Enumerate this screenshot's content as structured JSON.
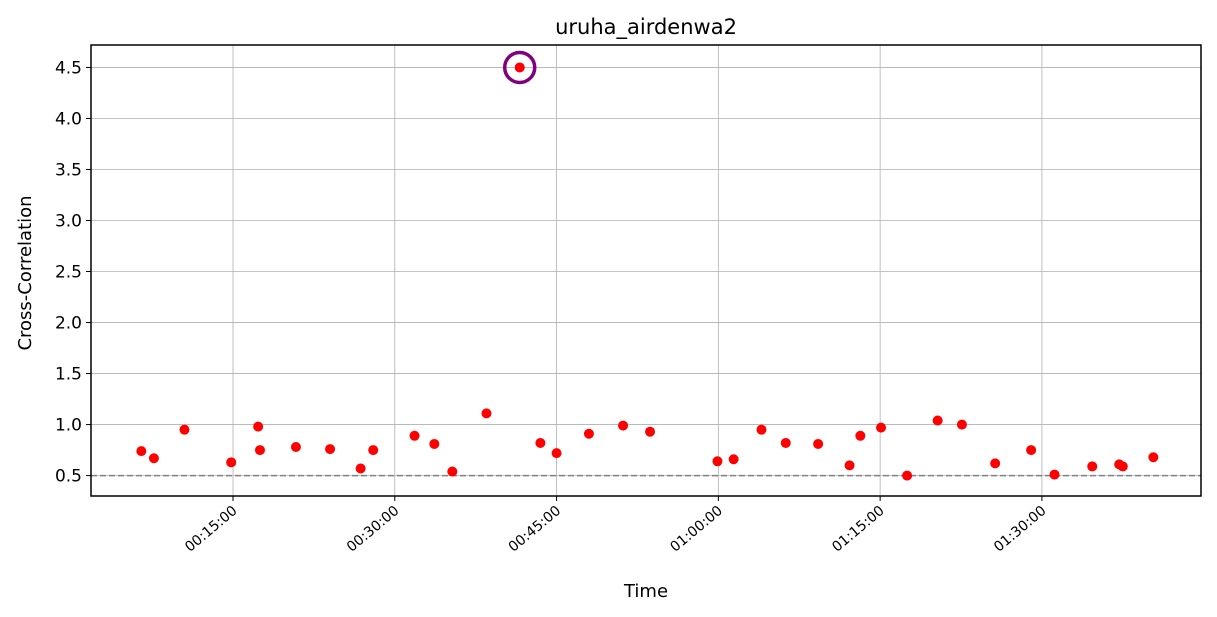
{
  "chart_data": {
    "type": "scatter",
    "title": "uruha_airdenwa2",
    "xlabel": "Time",
    "ylabel": "Cross-Correlation",
    "x_unit": "time (HH:MM:SS)",
    "xlim": [
      "00:01:50",
      "01:44:45"
    ],
    "ylim": [
      0.3,
      4.72
    ],
    "x_ticks": [
      "00:15:00",
      "00:30:00",
      "00:45:00",
      "01:00:00",
      "01:15:00",
      "01:30:00"
    ],
    "y_ticks": [
      "0.5",
      "1.0",
      "1.5",
      "2.0",
      "2.5",
      "3.0",
      "3.5",
      "4.0",
      "4.5"
    ],
    "grid": true,
    "threshold": 0.5,
    "point_color": "#ff0000",
    "highlight_color": "#800080",
    "threshold_color": "#808080",
    "highlight": {
      "x": "00:41:35",
      "y": 4.5
    },
    "points": [
      {
        "x": "00:06:30",
        "y": 0.74
      },
      {
        "x": "00:07:40",
        "y": 0.67
      },
      {
        "x": "00:10:30",
        "y": 0.95
      },
      {
        "x": "00:14:50",
        "y": 0.63
      },
      {
        "x": "00:17:20",
        "y": 0.98
      },
      {
        "x": "00:17:30",
        "y": 0.75
      },
      {
        "x": "00:20:50",
        "y": 0.78
      },
      {
        "x": "00:24:00",
        "y": 0.76
      },
      {
        "x": "00:26:50",
        "y": 0.57
      },
      {
        "x": "00:28:00",
        "y": 0.75
      },
      {
        "x": "00:31:50",
        "y": 0.89
      },
      {
        "x": "00:33:40",
        "y": 0.81
      },
      {
        "x": "00:35:20",
        "y": 0.54
      },
      {
        "x": "00:38:30",
        "y": 1.11
      },
      {
        "x": "00:41:35",
        "y": 4.5
      },
      {
        "x": "00:43:30",
        "y": 0.82
      },
      {
        "x": "00:45:00",
        "y": 0.72
      },
      {
        "x": "00:48:00",
        "y": 0.91
      },
      {
        "x": "00:51:10",
        "y": 0.99
      },
      {
        "x": "00:53:40",
        "y": 0.93
      },
      {
        "x": "00:59:55",
        "y": 0.64
      },
      {
        "x": "01:01:25",
        "y": 0.66
      },
      {
        "x": "01:04:00",
        "y": 0.95
      },
      {
        "x": "01:06:15",
        "y": 0.82
      },
      {
        "x": "01:09:15",
        "y": 0.81
      },
      {
        "x": "01:12:10",
        "y": 0.6
      },
      {
        "x": "01:13:10",
        "y": 0.89
      },
      {
        "x": "01:15:05",
        "y": 0.97
      },
      {
        "x": "01:17:30",
        "y": 0.5
      },
      {
        "x": "01:20:20",
        "y": 1.04
      },
      {
        "x": "01:22:35",
        "y": 1.0
      },
      {
        "x": "01:25:40",
        "y": 0.62
      },
      {
        "x": "01:29:00",
        "y": 0.75
      },
      {
        "x": "01:31:10",
        "y": 0.51
      },
      {
        "x": "01:34:40",
        "y": 0.59
      },
      {
        "x": "01:37:10",
        "y": 0.61
      },
      {
        "x": "01:37:30",
        "y": 0.59
      },
      {
        "x": "01:40:20",
        "y": 0.68
      }
    ]
  }
}
